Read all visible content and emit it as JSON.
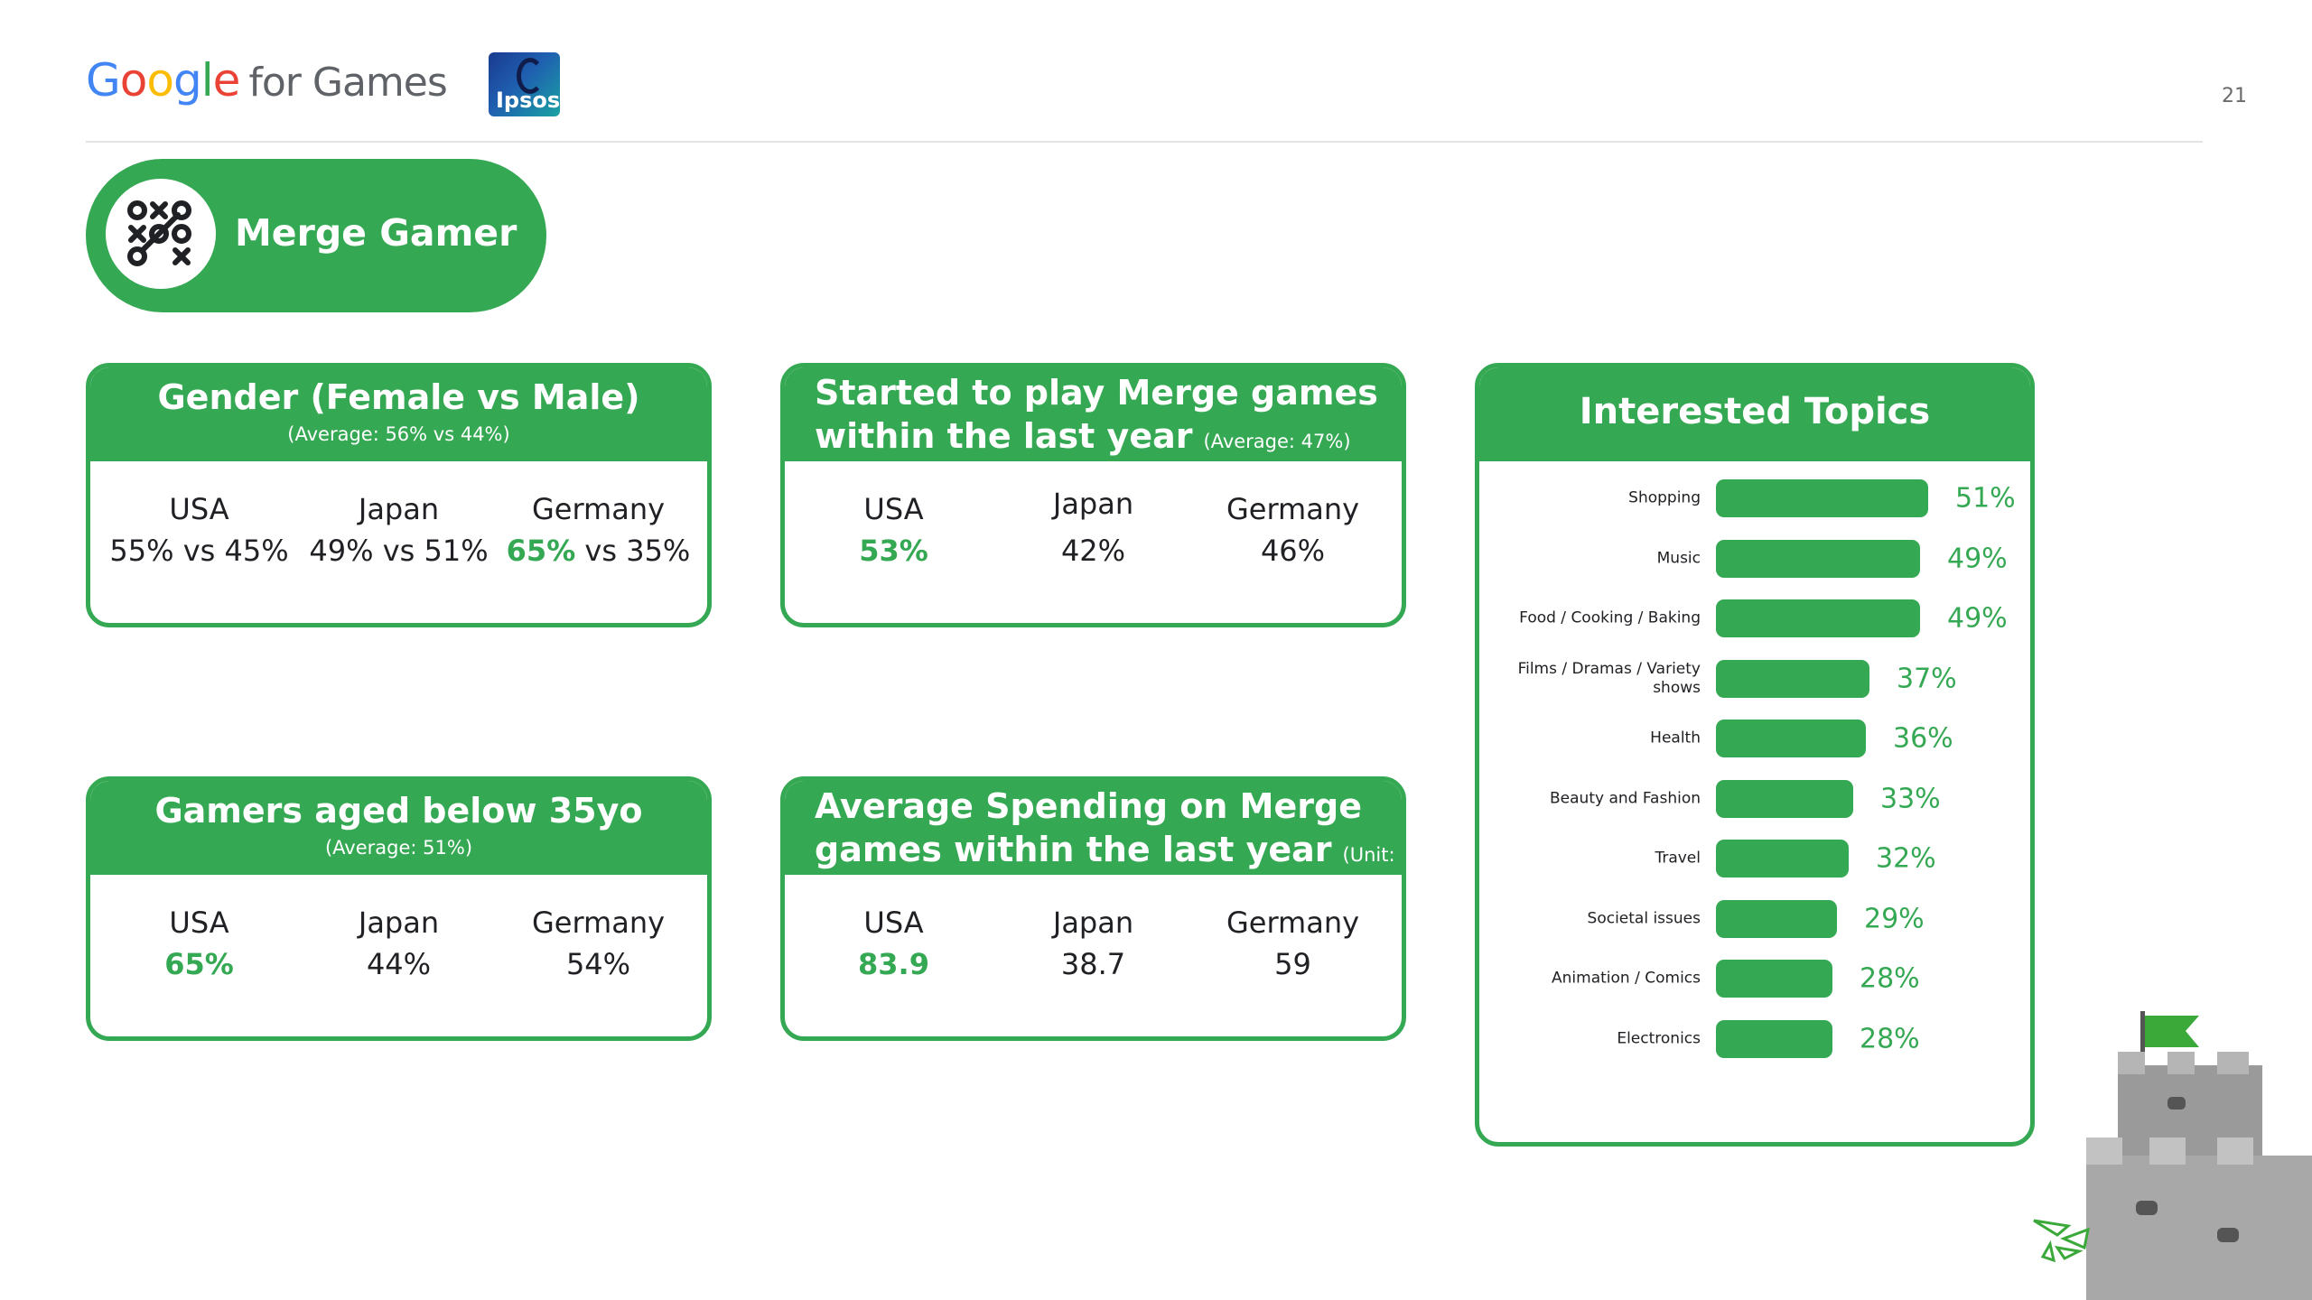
{
  "header": {
    "brand_google": "Google",
    "brand_suffix": "for Games",
    "partner_logo": "Ipsos",
    "page_number": "21"
  },
  "persona": {
    "title": "Merge Gamer",
    "icon": "tic-tac-toe-icon"
  },
  "cards": {
    "gender": {
      "title": "Gender (Female vs Male)",
      "subtitle": "(Average: 56% vs  44%)",
      "columns": [
        {
          "country": "USA",
          "highlight": "",
          "rest": "55% vs 45%"
        },
        {
          "country": "Japan",
          "highlight": "",
          "rest": "49% vs 51%"
        },
        {
          "country": "Germany",
          "highlight": "65%",
          "rest": " vs 35%"
        }
      ]
    },
    "started": {
      "title_line1": "Started to play Merge games",
      "title_line2": "within the last year",
      "note": "(Average: 47%)",
      "columns": [
        {
          "country": "USA",
          "value": "53%",
          "highlight": true
        },
        {
          "country": "Japan",
          "value": "42%",
          "highlight": false
        },
        {
          "country": "Germany",
          "value": "46%",
          "highlight": false
        }
      ]
    },
    "age": {
      "title": "Gamers aged below 35yo",
      "subtitle": "(Average: 51%)",
      "columns": [
        {
          "country": "USA",
          "value": "65%",
          "highlight": true
        },
        {
          "country": "Japan",
          "value": "44%",
          "highlight": false
        },
        {
          "country": "Germany",
          "value": "54%",
          "highlight": false
        }
      ]
    },
    "spending": {
      "title_line1": "Average Spending on Merge",
      "title_line2": "games within the last year",
      "note": "(Unit: USD)",
      "columns": [
        {
          "country": "USA",
          "value": "83.9",
          "highlight": true
        },
        {
          "country": "Japan",
          "value": "38.7",
          "highlight": false
        },
        {
          "country": "Germany",
          "value": "59",
          "highlight": false
        }
      ]
    }
  },
  "topics": {
    "title": "Interested Topics",
    "items": [
      {
        "label": "Shopping",
        "value": "51%",
        "pct": 51
      },
      {
        "label": "Music",
        "value": "49%",
        "pct": 49
      },
      {
        "label": "Food / Cooking / Baking",
        "value": "49%",
        "pct": 49
      },
      {
        "label": "Films / Dramas / Variety shows",
        "value": "37%",
        "pct": 37
      },
      {
        "label": "Health",
        "value": "36%",
        "pct": 36
      },
      {
        "label": "Beauty and Fashion",
        "value": "33%",
        "pct": 33
      },
      {
        "label": "Travel",
        "value": "32%",
        "pct": 32
      },
      {
        "label": "Societal issues",
        "value": "29%",
        "pct": 29
      },
      {
        "label": "Animation / Comics",
        "value": "28%",
        "pct": 28
      },
      {
        "label": "Electronics",
        "value": "28%",
        "pct": 28
      }
    ]
  },
  "colors": {
    "accent": "#35a853",
    "text": "#202124"
  }
}
